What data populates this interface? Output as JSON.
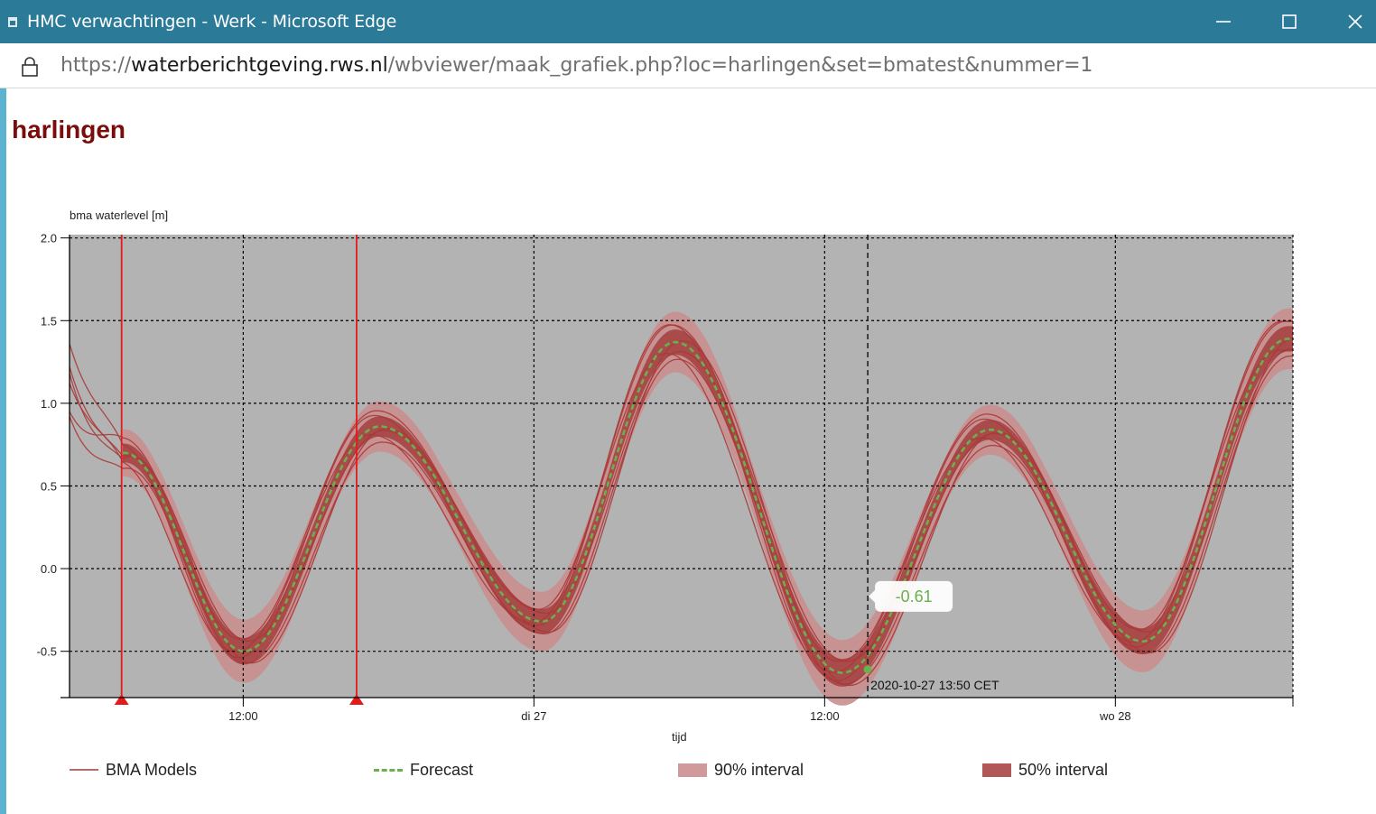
{
  "window": {
    "title": "HMC verwachtingen - Werk - Microsoft Edge",
    "url_scheme": "https://",
    "url_host": "waterberichtgeving.rws.nl",
    "url_path": "/wbviewer/maak_grafiek.php?loc=harlingen&set=bmatest&nummer=1"
  },
  "page": {
    "heading": "harlingen"
  },
  "colors": {
    "titlebar": "#2b7a98",
    "plot_bg": "#b3b3b3",
    "band90": "#c98e8e",
    "band50": "#a84848",
    "model_line": "#a83a3a",
    "forecast": "#6ab04c",
    "marker": "#e31a1c"
  },
  "chart_data": {
    "type": "line",
    "ylabel": "bma waterlevel [m]",
    "xlabel": "tijd",
    "x_range_hours": [
      0,
      50.5
    ],
    "ylim": [
      -0.78,
      2.02
    ],
    "yticks": [
      -0.5,
      0.0,
      0.5,
      1.0,
      1.5,
      2.0
    ],
    "ytick_labels": [
      "-0.5",
      "0.0",
      "0.5",
      "1.0",
      "1.5",
      "2.0"
    ],
    "xticks": [
      {
        "t": 7.17,
        "label": "12:00"
      },
      {
        "t": 19.17,
        "label": "di 27"
      },
      {
        "t": 31.17,
        "label": "12:00"
      },
      {
        "t": 43.17,
        "label": "wo 28"
      }
    ],
    "grid": true,
    "forecast_anchors": [
      [
        2.25,
        0.7
      ],
      [
        7.2,
        -0.5
      ],
      [
        12.8,
        0.86
      ],
      [
        19.5,
        -0.32
      ],
      [
        25.0,
        1.37
      ],
      [
        31.9,
        -0.63
      ],
      [
        38.0,
        0.84
      ],
      [
        44.3,
        -0.44
      ],
      [
        50.3,
        1.39
      ]
    ],
    "forecast_start": 2.2,
    "band_end": 50.5,
    "series": [
      {
        "name": "BMA Models",
        "kind": "model_lines"
      },
      {
        "name": "Forecast",
        "kind": "forecast"
      },
      {
        "name": "90% interval",
        "kind": "band90"
      },
      {
        "name": "50% interval",
        "kind": "band50"
      }
    ],
    "model_offsets": [
      {
        "a": 0.22,
        "p": 0.45,
        "c": 0.0
      },
      {
        "a": -0.18,
        "p": -0.35,
        "c": 0.03
      },
      {
        "a": 0.12,
        "p": -0.6,
        "c": -0.05
      },
      {
        "a": -0.1,
        "p": 0.7,
        "c": -0.02
      },
      {
        "a": 0.05,
        "p": 0.25,
        "c": 0.08
      },
      {
        "a": -0.05,
        "p": -0.2,
        "c": -0.08
      }
    ],
    "model_start_values": [
      1.36,
      1.22,
      1.18,
      1.12,
      0.95,
      0.92
    ],
    "vertical_markers": [
      2.15,
      11.85
    ],
    "crosshair_time": 32.95,
    "highlight_point": {
      "t": 32.95,
      "y": -0.61
    },
    "tooltip_value": "-0.61",
    "crosshair_label": "2020-10-27 13:50 CET"
  },
  "legend": [
    {
      "label": "BMA Models"
    },
    {
      "label": "Forecast"
    },
    {
      "label": "90% interval"
    },
    {
      "label": "50% interval"
    }
  ]
}
